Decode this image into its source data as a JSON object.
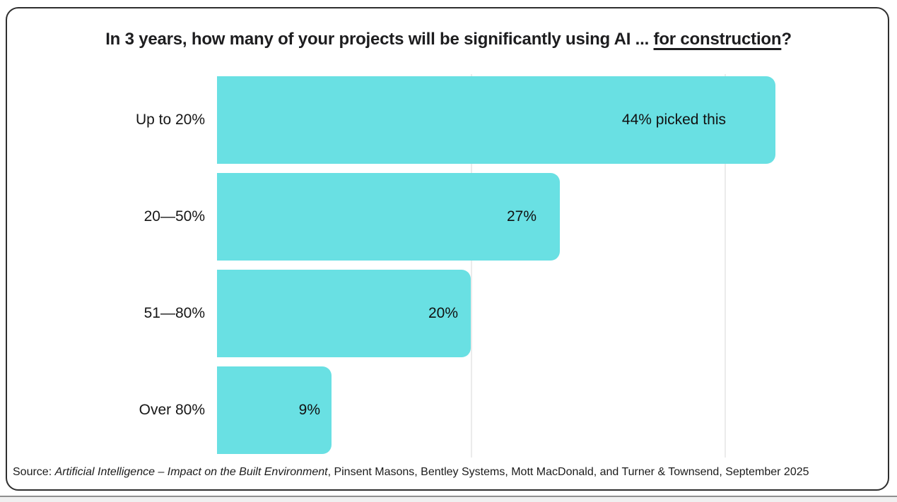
{
  "title": {
    "prefix": "In 3 years, how many of your projects will be significantly using AI ... ",
    "underlined": "for construction",
    "suffix": "?"
  },
  "chart_data": {
    "type": "bar",
    "orientation": "horizontal",
    "title": "In 3 years, how many of your projects will be significantly using AI ... for construction?",
    "categories": [
      "Up to 20%",
      "20—50%",
      "51—80%",
      "Over 80%"
    ],
    "values": [
      44,
      27,
      20,
      9
    ],
    "value_labels": [
      "44% picked this",
      "27%",
      "20%",
      "9%"
    ],
    "unit": "%",
    "xlim": [
      0,
      48
    ],
    "gridline_values": [
      20,
      40
    ],
    "grid": true,
    "legend": false,
    "bar_color": "#69e0e3",
    "gridline_color": "#ebebeb",
    "text_color": "#1d1d1f"
  },
  "source": {
    "prefix": "Source: ",
    "italic_title": "Artificial Intelligence – Impact on the Built Environment",
    "rest": ", Pinsent Masons, Bentley Systems, Mott MacDonald, and Turner & Townsend, September 2025"
  }
}
